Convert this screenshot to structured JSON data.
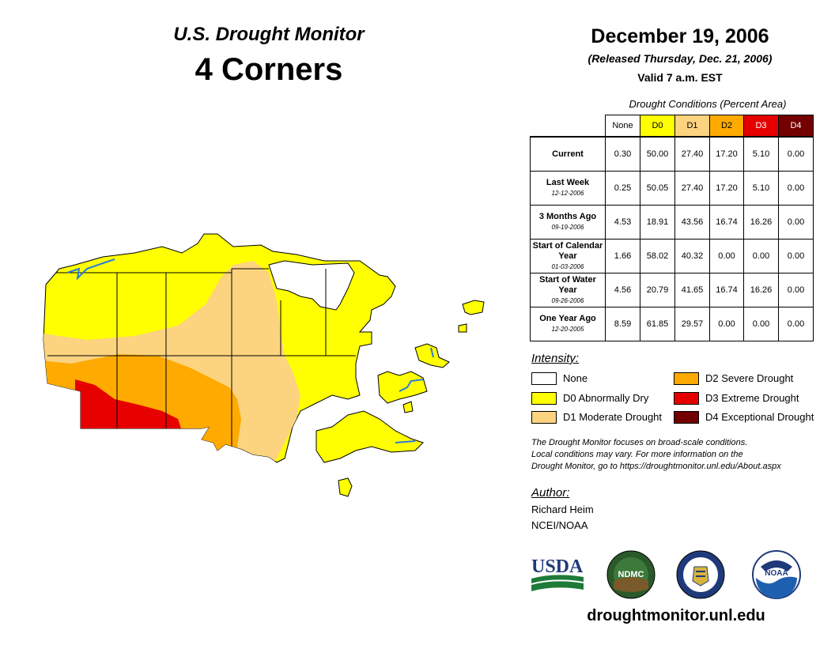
{
  "header": {
    "title": "U.S. Drought Monitor",
    "region": "4 Corners",
    "date": "December 19, 2006",
    "released": "(Released Thursday, Dec. 21, 2006)",
    "valid": "Valid 7 a.m. EST"
  },
  "table": {
    "caption": "Drought Conditions (Percent Area)",
    "columns": [
      {
        "label": "None",
        "color": "#ffffff",
        "text_color": "#000000"
      },
      {
        "label": "D0",
        "color": "#ffff00",
        "text_color": "#000000"
      },
      {
        "label": "D1",
        "color": "#fcd37f",
        "text_color": "#000000"
      },
      {
        "label": "D2",
        "color": "#ffaa00",
        "text_color": "#000000"
      },
      {
        "label": "D3",
        "color": "#e60000",
        "text_color": "#ffffff"
      },
      {
        "label": "D4",
        "color": "#730000",
        "text_color": "#ffffff"
      }
    ],
    "rows": [
      {
        "label": "Current",
        "sublabel": "",
        "values": [
          "0.30",
          "50.00",
          "27.40",
          "17.20",
          "5.10",
          "0.00"
        ]
      },
      {
        "label": "Last Week",
        "sublabel": "12-12-2006",
        "values": [
          "0.25",
          "50.05",
          "27.40",
          "17.20",
          "5.10",
          "0.00"
        ]
      },
      {
        "label": "3 Months Ago",
        "sublabel": "09-19-2006",
        "values": [
          "4.53",
          "18.91",
          "43.56",
          "16.74",
          "16.26",
          "0.00"
        ]
      },
      {
        "label": "Start of Calendar Year",
        "sublabel": "01-03-2006",
        "values": [
          "1.66",
          "58.02",
          "40.32",
          "0.00",
          "0.00",
          "0.00"
        ]
      },
      {
        "label": "Start of Water Year",
        "sublabel": "09-26-2006",
        "values": [
          "4.56",
          "20.79",
          "41.65",
          "16.74",
          "16.26",
          "0.00"
        ]
      },
      {
        "label": "One Year Ago",
        "sublabel": "12-20-2005",
        "values": [
          "8.59",
          "61.85",
          "29.57",
          "0.00",
          "0.00",
          "0.00"
        ]
      }
    ]
  },
  "legend": {
    "title": "Intensity:",
    "items": [
      {
        "label": "None",
        "color": "#ffffff"
      },
      {
        "label": "D0 Abnormally Dry",
        "color": "#ffff00"
      },
      {
        "label": "D1 Moderate Drought",
        "color": "#fcd37f"
      },
      {
        "label": "D2 Severe Drought",
        "color": "#ffaa00"
      },
      {
        "label": "D3 Extreme Drought",
        "color": "#e60000"
      },
      {
        "label": "D4 Exceptional Drought",
        "color": "#730000"
      }
    ]
  },
  "note": {
    "line1": "The Drought Monitor focuses on broad-scale conditions.",
    "line2": "Local conditions may vary. For more information on the",
    "line3": "Drought Monitor, go to https://droughtmonitor.unl.edu/About.aspx"
  },
  "author": {
    "title": "Author:",
    "name": "Richard Heim",
    "org": "NCEI/NOAA"
  },
  "logos": {
    "usda": "USDA",
    "ndmc": "NDMC",
    "noaa": "NOAA"
  },
  "footer": {
    "site": "droughtmonitor.unl.edu"
  }
}
